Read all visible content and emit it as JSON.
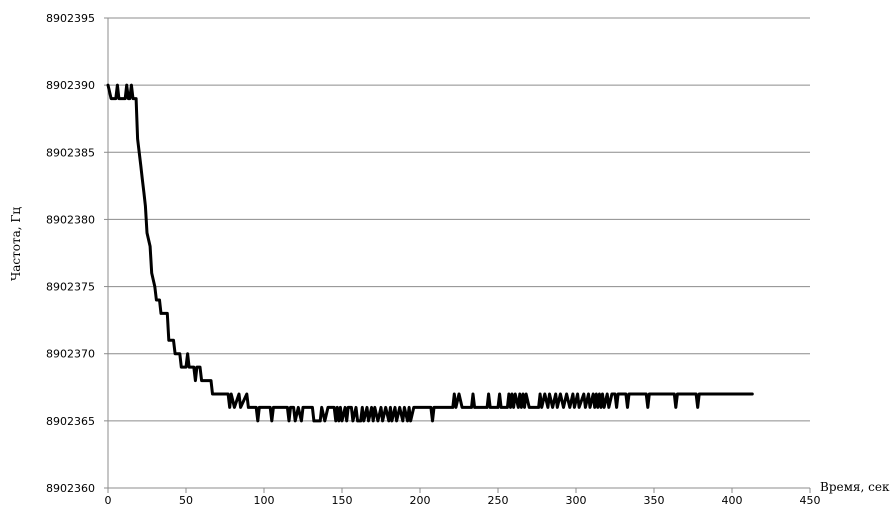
{
  "chart_data": {
    "type": "line",
    "title": "",
    "xlabel": "Время, сек",
    "ylabel": "Частота, Гц",
    "xlim": [
      0,
      450
    ],
    "ylim": [
      8902360,
      8902395
    ],
    "xticks": [
      "0",
      "50",
      "100",
      "150",
      "200",
      "250",
      "300",
      "350",
      "400",
      "450"
    ],
    "yticks": [
      "8902360",
      "8902365",
      "8902370",
      "8902375",
      "8902380",
      "8902385",
      "8902390",
      "8902395"
    ],
    "grid": "horizontal",
    "legend": "none",
    "line_color": "#000000",
    "series": [
      {
        "points": [
          [
            0,
            8902390
          ],
          [
            2,
            8902389
          ],
          [
            5,
            8902389
          ],
          [
            6,
            8902390
          ],
          [
            7,
            8902389
          ],
          [
            11,
            8902389
          ],
          [
            12,
            8902390
          ],
          [
            13,
            8902389
          ],
          [
            14,
            8902389
          ],
          [
            15,
            8902390
          ],
          [
            16,
            8902389
          ],
          [
            18,
            8902389
          ],
          [
            19,
            8902386
          ],
          [
            20,
            8902385
          ],
          [
            21,
            8902384
          ],
          [
            22,
            8902383
          ],
          [
            23,
            8902382
          ],
          [
            24,
            8902381
          ],
          [
            25,
            8902379
          ],
          [
            27,
            8902378
          ],
          [
            28,
            8902376
          ],
          [
            30,
            8902375
          ],
          [
            31,
            8902374
          ],
          [
            33,
            8902374
          ],
          [
            34,
            8902373
          ],
          [
            38,
            8902373
          ],
          [
            39,
            8902371
          ],
          [
            42,
            8902371
          ],
          [
            43,
            8902370
          ],
          [
            46,
            8902370
          ],
          [
            47,
            8902369
          ],
          [
            50,
            8902369
          ],
          [
            51,
            8902370
          ],
          [
            52,
            8902369
          ],
          [
            55,
            8902369
          ],
          [
            56,
            8902368
          ],
          [
            57,
            8902369
          ],
          [
            59,
            8902369
          ],
          [
            60,
            8902368
          ],
          [
            66,
            8902368
          ],
          [
            67,
            8902367
          ],
          [
            77,
            8902367
          ],
          [
            78,
            8902366
          ],
          [
            79,
            8902367
          ],
          [
            81,
            8902366
          ],
          [
            84,
            8902367
          ],
          [
            85,
            8902366
          ],
          [
            89,
            8902367
          ],
          [
            90,
            8902366
          ],
          [
            95,
            8902366
          ],
          [
            96,
            8902365
          ],
          [
            97,
            8902366
          ],
          [
            104,
            8902366
          ],
          [
            105,
            8902365
          ],
          [
            106,
            8902366
          ],
          [
            115,
            8902366
          ],
          [
            116,
            8902365
          ],
          [
            117,
            8902366
          ],
          [
            119,
            8902366
          ],
          [
            120,
            8902365
          ],
          [
            122,
            8902366
          ],
          [
            124,
            8902365
          ],
          [
            125,
            8902366
          ],
          [
            131,
            8902366
          ],
          [
            132,
            8902365
          ],
          [
            136,
            8902365
          ],
          [
            137,
            8902366
          ],
          [
            139,
            8902365
          ],
          [
            141,
            8902366
          ],
          [
            145,
            8902366
          ],
          [
            146,
            8902365
          ],
          [
            147,
            8902366
          ],
          [
            148,
            8902365
          ],
          [
            149,
            8902366
          ],
          [
            150,
            8902365
          ],
          [
            152,
            8902366
          ],
          [
            153,
            8902365
          ],
          [
            154,
            8902366
          ],
          [
            156,
            8902366
          ],
          [
            157,
            8902365
          ],
          [
            159,
            8902366
          ],
          [
            160,
            8902365
          ],
          [
            162,
            8902365
          ],
          [
            163,
            8902366
          ],
          [
            164,
            8902365
          ],
          [
            166,
            8902366
          ],
          [
            167,
            8902365
          ],
          [
            169,
            8902366
          ],
          [
            170,
            8902365
          ],
          [
            171,
            8902366
          ],
          [
            173,
            8902365
          ],
          [
            175,
            8902366
          ],
          [
            176,
            8902365
          ],
          [
            178,
            8902366
          ],
          [
            180,
            8902365
          ],
          [
            181,
            8902366
          ],
          [
            182,
            8902365
          ],
          [
            184,
            8902366
          ],
          [
            185,
            8902365
          ],
          [
            187,
            8902366
          ],
          [
            189,
            8902365
          ],
          [
            190,
            8902366
          ],
          [
            192,
            8902365
          ],
          [
            193,
            8902366
          ],
          [
            194,
            8902365
          ],
          [
            196,
            8902366
          ],
          [
            207,
            8902366
          ],
          [
            208,
            8902365
          ],
          [
            209,
            8902366
          ],
          [
            221,
            8902366
          ],
          [
            222,
            8902367
          ],
          [
            223,
            8902366
          ],
          [
            225,
            8902367
          ],
          [
            227,
            8902366
          ],
          [
            233,
            8902366
          ],
          [
            234,
            8902367
          ],
          [
            235,
            8902366
          ],
          [
            243,
            8902366
          ],
          [
            244,
            8902367
          ],
          [
            245,
            8902366
          ],
          [
            250,
            8902366
          ],
          [
            251,
            8902367
          ],
          [
            252,
            8902366
          ],
          [
            256,
            8902366
          ],
          [
            257,
            8902367
          ],
          [
            258,
            8902366
          ],
          [
            259,
            8902367
          ],
          [
            260,
            8902366
          ],
          [
            261,
            8902367
          ],
          [
            263,
            8902366
          ],
          [
            264,
            8902367
          ],
          [
            265,
            8902366
          ],
          [
            266,
            8902367
          ],
          [
            267,
            8902366
          ],
          [
            268,
            8902367
          ],
          [
            270,
            8902366
          ],
          [
            276,
            8902366
          ],
          [
            277,
            8902367
          ],
          [
            278,
            8902366
          ],
          [
            280,
            8902367
          ],
          [
            282,
            8902366
          ],
          [
            283,
            8902367
          ],
          [
            285,
            8902366
          ],
          [
            287,
            8902367
          ],
          [
            288,
            8902366
          ],
          [
            290,
            8902367
          ],
          [
            292,
            8902366
          ],
          [
            294,
            8902367
          ],
          [
            296,
            8902366
          ],
          [
            298,
            8902367
          ],
          [
            299,
            8902366
          ],
          [
            301,
            8902367
          ],
          [
            302,
            8902366
          ],
          [
            305,
            8902367
          ],
          [
            306,
            8902366
          ],
          [
            308,
            8902367
          ],
          [
            309,
            8902366
          ],
          [
            311,
            8902367
          ],
          [
            312,
            8902366
          ],
          [
            313,
            8902367
          ],
          [
            314,
            8902366
          ],
          [
            315,
            8902367
          ],
          [
            316,
            8902366
          ],
          [
            317,
            8902367
          ],
          [
            318,
            8902366
          ],
          [
            320,
            8902367
          ],
          [
            321,
            8902366
          ],
          [
            323,
            8902367
          ],
          [
            325,
            8902367
          ],
          [
            326,
            8902366
          ],
          [
            327,
            8902367
          ],
          [
            332,
            8902367
          ],
          [
            333,
            8902366
          ],
          [
            334,
            8902367
          ],
          [
            345,
            8902367
          ],
          [
            346,
            8902366
          ],
          [
            347,
            8902367
          ],
          [
            363,
            8902367
          ],
          [
            364,
            8902366
          ],
          [
            365,
            8902367
          ],
          [
            377,
            8902367
          ],
          [
            378,
            8902366
          ],
          [
            379,
            8902367
          ],
          [
            413,
            8902367
          ]
        ]
      }
    ]
  }
}
